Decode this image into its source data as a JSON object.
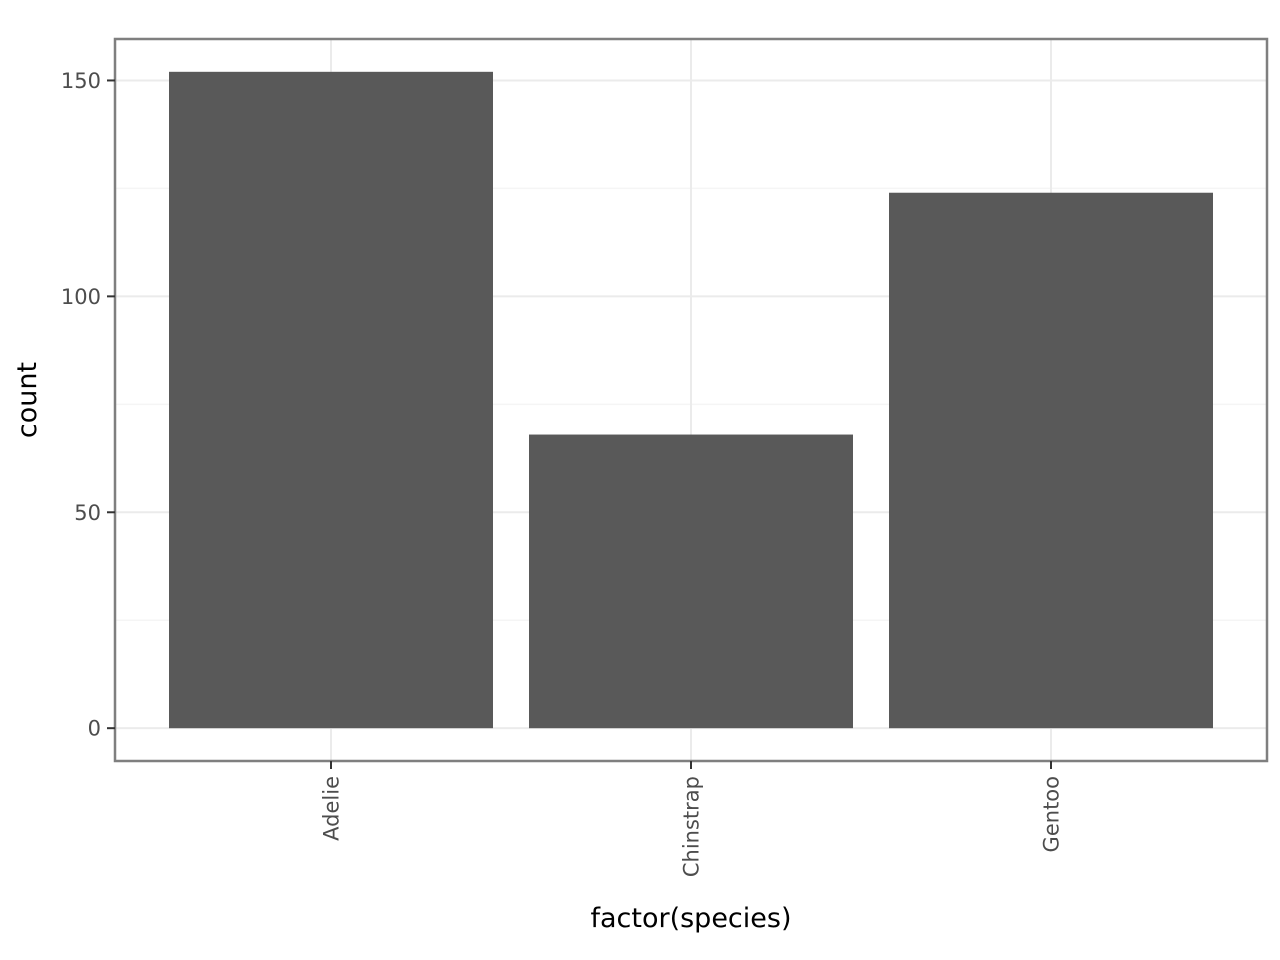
{
  "chart_data": {
    "type": "bar",
    "title": "",
    "xlabel": "factor(species)",
    "ylabel": "count",
    "categories": [
      "Adelie",
      "Chinstrap",
      "Gentoo"
    ],
    "values": [
      152,
      68,
      124
    ],
    "ylim": [
      -7.6,
      159.6
    ],
    "y_ticks": [
      0,
      50,
      100,
      150
    ],
    "y_tick_labels": [
      "0",
      "50",
      "100",
      "150"
    ],
    "y_minor_ticks": [
      25,
      75,
      125
    ],
    "grid": true,
    "x_tick_label_rotation": "vertical",
    "colors": {
      "bar": "#595959",
      "panel_border": "#7f7f7f",
      "grid_major": "#ebebeb",
      "grid_minor": "#f5f5f5",
      "tick_label": "#4d4d4d",
      "axis_title": "#000000",
      "background": "#ffffff"
    }
  }
}
